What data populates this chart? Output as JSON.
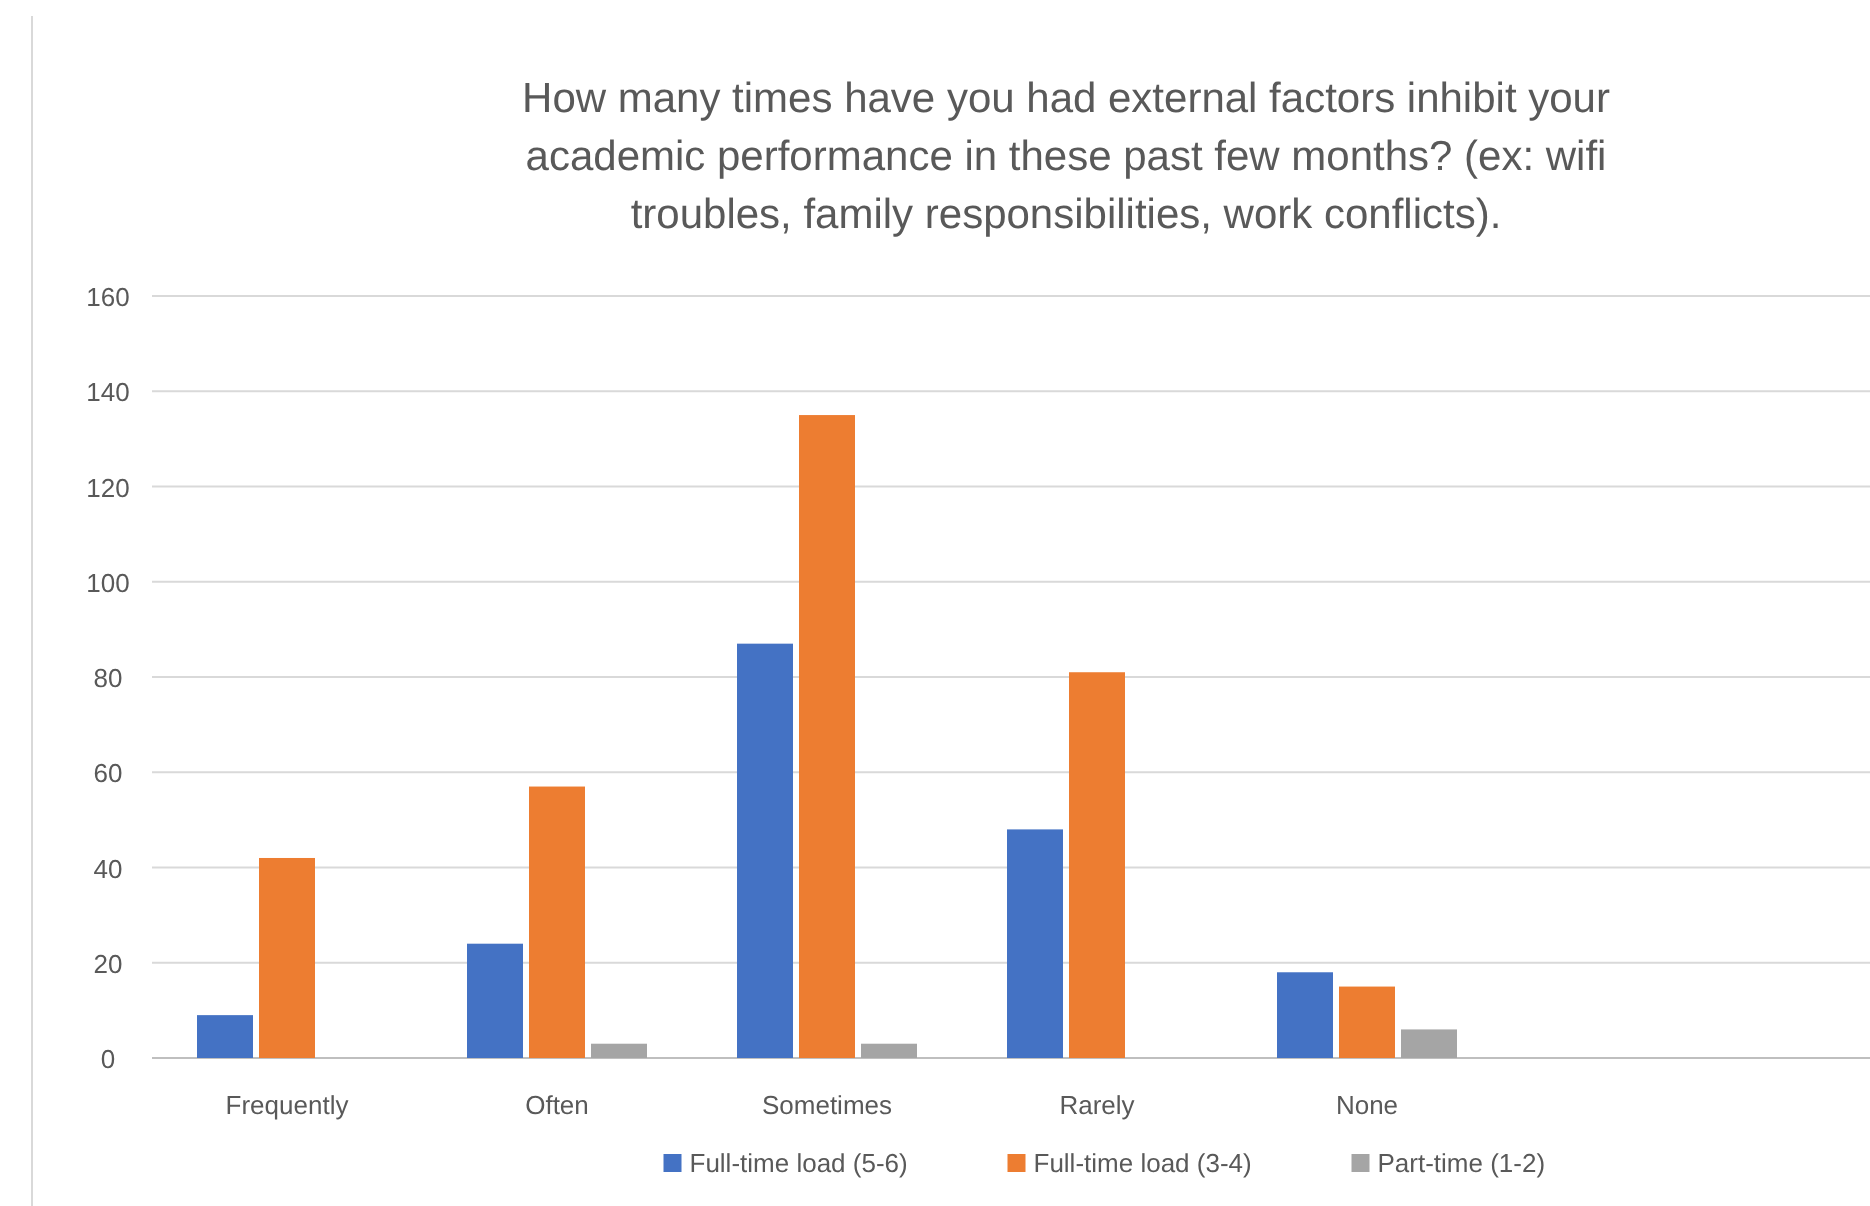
{
  "chart_data": {
    "type": "bar",
    "title": "How many times have you had external factors inhibit your academic performance in these past few months? (ex: wifi troubles, family responsibilities, work conflicts).",
    "categories": [
      "Frequently",
      "Often",
      "Sometimes",
      "Rarely",
      "None"
    ],
    "series": [
      {
        "name": "Full-time load (5-6)",
        "color": "#4472c4",
        "values": [
          9,
          24,
          87,
          48,
          18
        ]
      },
      {
        "name": "Full-time load (3-4)",
        "color": "#ed7d31",
        "values": [
          42,
          57,
          135,
          81,
          15
        ]
      },
      {
        "name": "Part-time (1-2)",
        "color": "#a5a5a5",
        "values": [
          0,
          3,
          3,
          0,
          6
        ]
      }
    ],
    "ylim": [
      0,
      160
    ],
    "yticks": [
      0,
      20,
      40,
      60,
      80,
      100,
      120,
      140,
      160
    ],
    "grid": "y",
    "legend": "bottom"
  }
}
